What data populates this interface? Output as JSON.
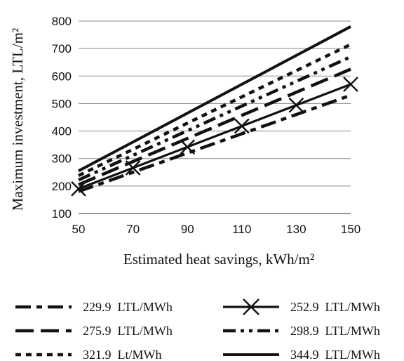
{
  "chart_data": {
    "type": "line",
    "xlabel": "Estimated heat savings, kWh/m²",
    "ylabel": "Maximum investment, LTL/m²",
    "x": [
      50,
      150
    ],
    "xlim": [
      50,
      150
    ],
    "ylim": [
      100,
      800
    ],
    "x_ticks": [
      "50",
      "70",
      "90",
      "110",
      "130",
      "150"
    ],
    "y_ticks": [
      "100",
      "200",
      "300",
      "400",
      "500",
      "600",
      "700",
      "800"
    ],
    "grid": "horizontal",
    "legend_position": "bottom",
    "series": [
      {
        "name": "229.9  LTL/MWh",
        "values": [
          180,
          530
        ],
        "style": "dash-dot-dash"
      },
      {
        "name": "252.9  LTL/MWh",
        "values": [
          190,
          570
        ],
        "style": "solid-x"
      },
      {
        "name": "275.9  LTL/MWh",
        "values": [
          205,
          625
        ],
        "style": "long-dash"
      },
      {
        "name": "298.9  LTL/MWh",
        "values": [
          222,
          670
        ],
        "style": "dash-dot-dot"
      },
      {
        "name": "321.9  Lt/MWh",
        "values": [
          238,
          715
        ],
        "style": "short-dash"
      },
      {
        "name": "344.9  LTL/MWh",
        "values": [
          255,
          780
        ],
        "style": "solid"
      }
    ]
  }
}
